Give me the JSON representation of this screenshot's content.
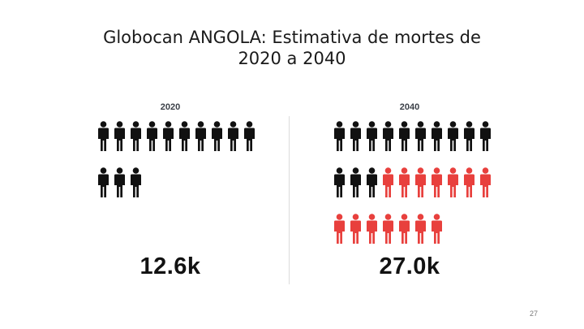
{
  "slide": {
    "title_lines": [
      "Globocan ANGOLA: Estimativa de mortes de",
      "2020 a 2040"
    ],
    "number": "27"
  },
  "colors": {
    "existing": "#111111",
    "increase": "#e8403d"
  },
  "panels": [
    {
      "year": "2020",
      "total": "12.6k",
      "icon": "person-icon",
      "rows": [
        {
          "black": 10,
          "red": 0
        },
        {
          "black": 3,
          "red": 0
        }
      ]
    },
    {
      "year": "2040",
      "total": "27.0k",
      "icon": "person-icon",
      "rows": [
        {
          "black": 10,
          "red": 0
        },
        {
          "black": 3,
          "red": 7
        },
        {
          "black": 0,
          "red": 7
        }
      ]
    }
  ]
}
